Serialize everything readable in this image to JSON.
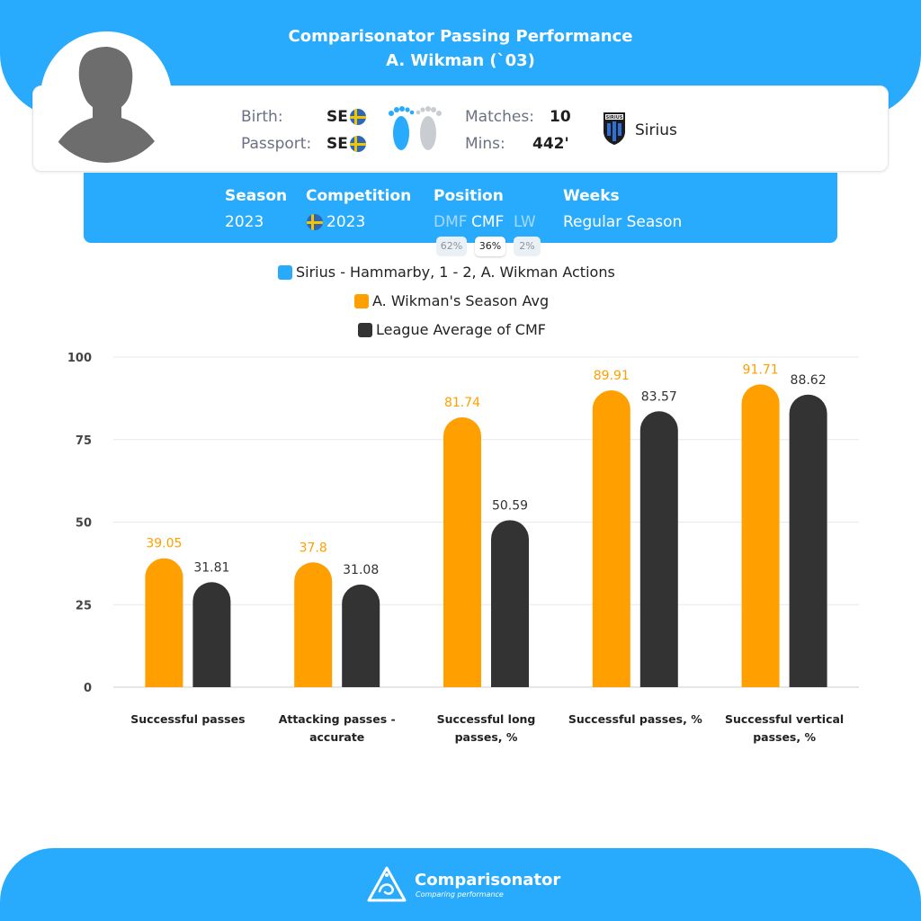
{
  "header": {
    "title": "Comparisonator Passing Performance",
    "player_name": "A. Wikman (`03)"
  },
  "profile": {
    "birth_label": "Birth:",
    "birth_value": "SE",
    "passport_label": "Passport:",
    "passport_value": "SE",
    "flag_icon": "sweden-flag-icon",
    "foot_icon": "feet-icon",
    "matches_label": "Matches:",
    "matches_value": "10",
    "mins_label": "Mins:",
    "mins_value": "442'",
    "club_name": "Sirius",
    "club_badge_text": "SIRIUS"
  },
  "season_box": {
    "season_header": "Season",
    "season_value": "2023",
    "competition_header": "Competition",
    "competition_value": "2023",
    "position_header": "Position",
    "weeks_header": "Weeks",
    "weeks_value": "Regular Season",
    "positions": [
      {
        "code": "DMF",
        "pct": "62%",
        "active": false
      },
      {
        "code": "CMF",
        "pct": "36%",
        "active": true
      },
      {
        "code": "LW",
        "pct": "2%",
        "active": false
      }
    ]
  },
  "legend": [
    {
      "label": "Sirius - Hammarby, 1 - 2, A. Wikman Actions",
      "color": "#29abfd"
    },
    {
      "label": "A. Wikman's Season Avg",
      "color": "#ff9f00"
    },
    {
      "label": "League Average of CMF",
      "color": "#333333"
    }
  ],
  "chart_data": {
    "type": "bar",
    "categories": [
      [
        "Successful passes"
      ],
      [
        "Attacking passes -",
        "accurate"
      ],
      [
        "Successful long",
        "passes, %"
      ],
      [
        "Successful passes, %"
      ],
      [
        "Successful vertical",
        "passes, %"
      ]
    ],
    "series": [
      {
        "name": "A. Wikman's Season Avg",
        "color": "#ff9f00",
        "label_color": "#ff9f00",
        "values": [
          39.05,
          37.8,
          81.74,
          89.91,
          91.71
        ]
      },
      {
        "name": "League Average of CMF",
        "color": "#333333",
        "label_color": "#333333",
        "values": [
          31.81,
          31.08,
          50.59,
          83.57,
          88.62
        ]
      }
    ],
    "ylim": [
      0,
      100
    ],
    "yticks": [
      0,
      25,
      50,
      75,
      100
    ],
    "grid": true,
    "legend_position": "top"
  },
  "footer": {
    "brand": "Comparisonator",
    "tagline": "Comparing performance",
    "logo_icon": "comparisonator-logo-icon"
  },
  "colors": {
    "brand_blue": "#29abfd",
    "season_orange": "#ff9f00",
    "league_dark": "#333333"
  }
}
